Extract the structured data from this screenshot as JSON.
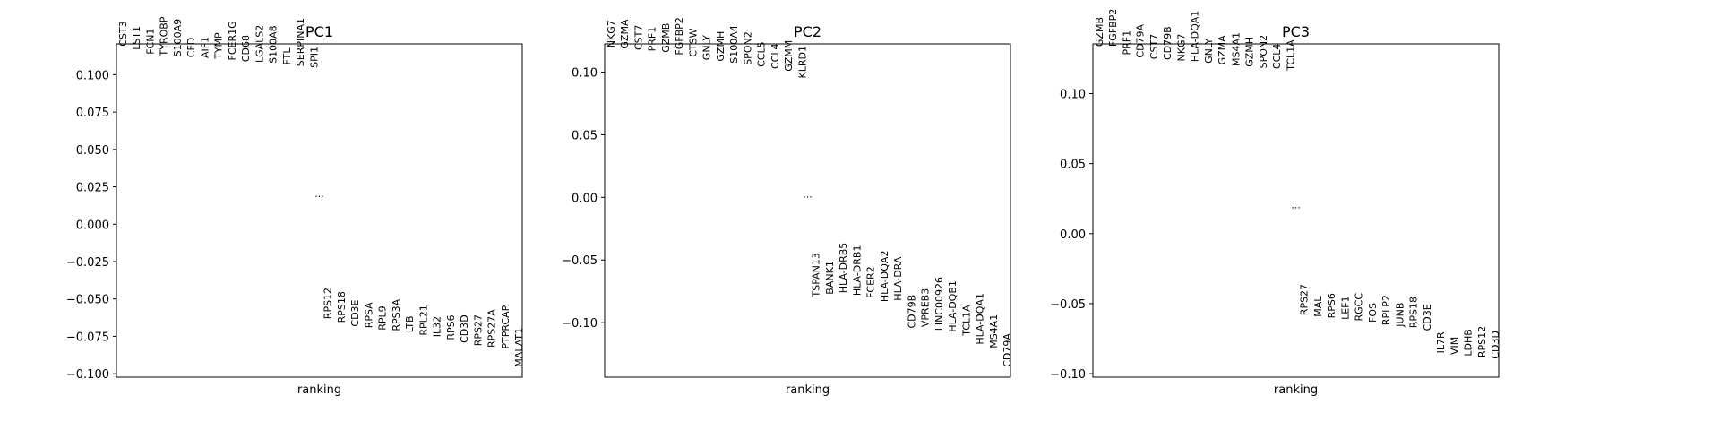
{
  "chart_data": [
    {
      "type": "scatter",
      "title": "PC1",
      "xlabel": "ranking",
      "ylabel": "",
      "ylim": [
        -0.1023,
        0.1206
      ],
      "yticks": [
        0.1,
        0.075,
        0.05,
        0.025,
        0.0,
        -0.025,
        -0.05,
        -0.075,
        -0.1
      ],
      "ytick_labels": [
        "0.100",
        "0.075",
        "0.050",
        "0.025",
        "0.000",
        "−0.025",
        "−0.050",
        "−0.075",
        "−0.100"
      ],
      "ellipsis": "...",
      "ellipsis_y": 0.018,
      "top_genes": [
        {
          "gene": "CST3",
          "score": 0.119
        },
        {
          "gene": "LST1",
          "score": 0.1165
        },
        {
          "gene": "FCN1",
          "score": 0.1135
        },
        {
          "gene": "TYROBP",
          "score": 0.1125
        },
        {
          "gene": "S100A9",
          "score": 0.112
        },
        {
          "gene": "CFD",
          "score": 0.1115
        },
        {
          "gene": "AIF1",
          "score": 0.111
        },
        {
          "gene": "TYMP",
          "score": 0.1105
        },
        {
          "gene": "FCER1G",
          "score": 0.1095
        },
        {
          "gene": "CD68",
          "score": 0.1085
        },
        {
          "gene": "LGALS2",
          "score": 0.108
        },
        {
          "gene": "S100A8",
          "score": 0.1075
        },
        {
          "gene": "FTL",
          "score": 0.1065
        },
        {
          "gene": "SERPINA1",
          "score": 0.1055
        },
        {
          "gene": "SPI1",
          "score": 0.1045
        }
      ],
      "bottom_genes": [
        {
          "gene": "RPS12",
          "score": -0.0635
        },
        {
          "gene": "RPS18",
          "score": -0.066
        },
        {
          "gene": "CD3E",
          "score": -0.0685
        },
        {
          "gene": "RPSA",
          "score": -0.0695
        },
        {
          "gene": "RPL9",
          "score": -0.071
        },
        {
          "gene": "RPS3A",
          "score": -0.0715
        },
        {
          "gene": "LTB",
          "score": -0.0725
        },
        {
          "gene": "RPL21",
          "score": -0.0745
        },
        {
          "gene": "IL32",
          "score": -0.0755
        },
        {
          "gene": "RPS6",
          "score": -0.0775
        },
        {
          "gene": "CD3D",
          "score": -0.0795
        },
        {
          "gene": "RPS27",
          "score": -0.0815
        },
        {
          "gene": "RPS27A",
          "score": -0.0825
        },
        {
          "gene": "PTPRCAP",
          "score": -0.0835
        },
        {
          "gene": "MALAT1",
          "score": -0.0955
        }
      ]
    },
    {
      "type": "scatter",
      "title": "PC2",
      "xlabel": "ranking",
      "ylabel": "",
      "ylim": [
        -0.1435,
        0.1225
      ],
      "yticks": [
        0.1,
        0.05,
        0.0,
        -0.05,
        -0.1
      ],
      "ytick_labels": [
        "0.10",
        "0.05",
        "0.00",
        "−0.05",
        "−0.10"
      ],
      "ellipsis": "...",
      "ellipsis_y": 0.0,
      "top_genes": [
        {
          "gene": "NKG7",
          "score": 0.1195
        },
        {
          "gene": "GZMA",
          "score": 0.1185
        },
        {
          "gene": "CST7",
          "score": 0.1175
        },
        {
          "gene": "PRF1",
          "score": 0.1165
        },
        {
          "gene": "GZMB",
          "score": 0.1155
        },
        {
          "gene": "FGFBP2",
          "score": 0.1135
        },
        {
          "gene": "CTSW",
          "score": 0.112
        },
        {
          "gene": "GNLY",
          "score": 0.1095
        },
        {
          "gene": "GZMH",
          "score": 0.1085
        },
        {
          "gene": "S100A4",
          "score": 0.107
        },
        {
          "gene": "SPON2",
          "score": 0.1055
        },
        {
          "gene": "CCL5",
          "score": 0.104
        },
        {
          "gene": "CCL4",
          "score": 0.1025
        },
        {
          "gene": "GZMM",
          "score": 0.1005
        },
        {
          "gene": "KLRD1",
          "score": 0.095
        }
      ],
      "bottom_genes": [
        {
          "gene": "TSPAN13",
          "score": -0.0795
        },
        {
          "gene": "BANK1",
          "score": -0.0775
        },
        {
          "gene": "HLA-DRB5",
          "score": -0.0765
        },
        {
          "gene": "HLA-DRB1",
          "score": -0.0785
        },
        {
          "gene": "FCER2",
          "score": -0.0805
        },
        {
          "gene": "HLA-DQA2",
          "score": -0.0835
        },
        {
          "gene": "HLA-DRA",
          "score": -0.0825
        },
        {
          "gene": "CD79B",
          "score": -0.1045
        },
        {
          "gene": "VPREB3",
          "score": -0.1035
        },
        {
          "gene": "LINC00926",
          "score": -0.1065
        },
        {
          "gene": "HLA-DQB1",
          "score": -0.1075
        },
        {
          "gene": "TCL1A",
          "score": -0.1105
        },
        {
          "gene": "HLA-DQA1",
          "score": -0.1175
        },
        {
          "gene": "MS4A1",
          "score": -0.1205
        },
        {
          "gene": "CD79A",
          "score": -0.1355
        }
      ]
    },
    {
      "type": "scatter",
      "title": "PC3",
      "xlabel": "ranking",
      "ylabel": "",
      "ylim": [
        -0.1025,
        0.1355
      ],
      "yticks": [
        0.1,
        0.05,
        0.0,
        -0.05,
        -0.1
      ],
      "ytick_labels": [
        "0.10",
        "0.05",
        "0.00",
        "−0.05",
        "−0.10"
      ],
      "ellipsis": "...",
      "ellipsis_y": 0.018,
      "top_genes": [
        {
          "gene": "GZMB",
          "score": 0.1335
        },
        {
          "gene": "FGFBP2",
          "score": 0.1335
        },
        {
          "gene": "PRF1",
          "score": 0.1275
        },
        {
          "gene": "CD79A",
          "score": 0.1255
        },
        {
          "gene": "CST7",
          "score": 0.1245
        },
        {
          "gene": "CD79B",
          "score": 0.124
        },
        {
          "gene": "NKG7",
          "score": 0.123
        },
        {
          "gene": "HLA-DQA1",
          "score": 0.1225
        },
        {
          "gene": "GNLY",
          "score": 0.1215
        },
        {
          "gene": "GZMA",
          "score": 0.1205
        },
        {
          "gene": "MS4A1",
          "score": 0.1195
        },
        {
          "gene": "GZMH",
          "score": 0.119
        },
        {
          "gene": "SPON2",
          "score": 0.118
        },
        {
          "gene": "CCL4",
          "score": 0.1175
        },
        {
          "gene": "TCL1A",
          "score": 0.1165
        }
      ],
      "bottom_genes": [
        {
          "gene": "RPS27",
          "score": -0.0585
        },
        {
          "gene": "MAL",
          "score": -0.0595
        },
        {
          "gene": "RPS6",
          "score": -0.0605
        },
        {
          "gene": "LEF1",
          "score": -0.0615
        },
        {
          "gene": "RGCC",
          "score": -0.0625
        },
        {
          "gene": "FOS",
          "score": -0.0635
        },
        {
          "gene": "RPLP2",
          "score": -0.0655
        },
        {
          "gene": "JUNB",
          "score": -0.0665
        },
        {
          "gene": "RPS18",
          "score": -0.0675
        },
        {
          "gene": "CD3E",
          "score": -0.0695
        },
        {
          "gene": "IL7R",
          "score": -0.0855
        },
        {
          "gene": "VIM",
          "score": -0.0865
        },
        {
          "gene": "LDHB",
          "score": -0.0875
        },
        {
          "gene": "RPS12",
          "score": -0.0885
        },
        {
          "gene": "CD3D",
          "score": -0.0895
        }
      ]
    }
  ]
}
